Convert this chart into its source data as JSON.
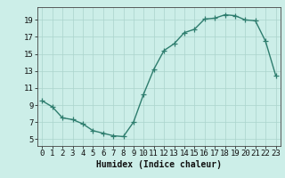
{
  "x": [
    0,
    1,
    2,
    3,
    4,
    5,
    6,
    7,
    8,
    9,
    10,
    11,
    12,
    13,
    14,
    15,
    16,
    17,
    18,
    19,
    20,
    21,
    22,
    23
  ],
  "y": [
    9.5,
    8.8,
    7.5,
    7.3,
    6.8,
    6.0,
    5.7,
    5.4,
    5.3,
    7.0,
    10.3,
    13.2,
    15.4,
    16.2,
    17.5,
    17.9,
    19.1,
    19.2,
    19.6,
    19.5,
    19.0,
    18.9,
    16.5,
    12.5
  ],
  "line_color": "#2e7d6e",
  "marker": "+",
  "markersize": 4,
  "linewidth": 1.0,
  "bg_color": "#cceee8",
  "grid_color": "#aad4cc",
  "xlabel": "Humidex (Indice chaleur)",
  "xlabel_fontsize": 7,
  "ylabel_ticks": [
    5,
    7,
    9,
    11,
    13,
    15,
    17,
    19
  ],
  "xlim": [
    -0.5,
    23.5
  ],
  "ylim": [
    4.2,
    20.5
  ],
  "tick_fontsize": 6.5
}
